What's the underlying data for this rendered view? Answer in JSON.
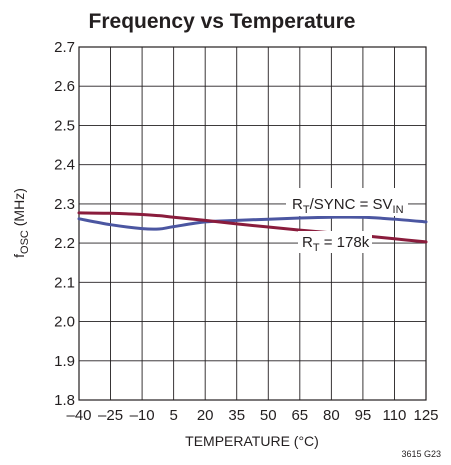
{
  "chart_data": {
    "type": "line",
    "title": "Frequency vs Temperature",
    "xlabel": "TEMPERATURE (°C)",
    "ylabel": {
      "main": "f",
      "sub": "OSC",
      "unit": " (MHz)"
    },
    "xlim": [
      -40,
      125
    ],
    "ylim": [
      1.8,
      2.7
    ],
    "x_ticks": [
      -40,
      -25,
      -10,
      5,
      20,
      35,
      50,
      65,
      80,
      95,
      110,
      125
    ],
    "x_tick_labels": [
      "–40",
      "–25",
      "–10",
      "5",
      "20",
      "35",
      "50",
      "65",
      "80",
      "95",
      "110",
      "125"
    ],
    "y_ticks": [
      1.8,
      1.9,
      2.0,
      2.1,
      2.2,
      2.3,
      2.4,
      2.5,
      2.6,
      2.7
    ],
    "y_tick_labels": [
      "1.8",
      "1.9",
      "2.0",
      "2.1",
      "2.2",
      "2.3",
      "2.4",
      "2.5",
      "2.6",
      "2.7"
    ],
    "grid": true,
    "x": [
      -40,
      -25,
      -10,
      -2,
      5,
      20,
      35,
      50,
      65,
      80,
      95,
      110,
      125
    ],
    "series": [
      {
        "color": "#4b56a1",
        "values": [
          2.262,
          2.247,
          2.237,
          2.236,
          2.242,
          2.254,
          2.258,
          2.261,
          2.264,
          2.266,
          2.266,
          2.261,
          2.254
        ]
      },
      {
        "color": "#8a1c3c",
        "values": [
          2.277,
          2.276,
          2.273,
          2.27,
          2.266,
          2.258,
          2.249,
          2.241,
          2.233,
          2.226,
          2.219,
          2.211,
          2.203
        ]
      }
    ],
    "annotations": [
      {
        "parts": [
          {
            "t": "R"
          },
          {
            "t": "T",
            "sub": true
          },
          {
            "t": "/SYNC = SV"
          },
          {
            "t": "IN",
            "sub": true
          }
        ]
      },
      {
        "parts": [
          {
            "t": "R"
          },
          {
            "t": "T",
            "sub": true
          },
          {
            "t": " = 178k"
          }
        ]
      }
    ],
    "figure_id": "3615 G23"
  }
}
